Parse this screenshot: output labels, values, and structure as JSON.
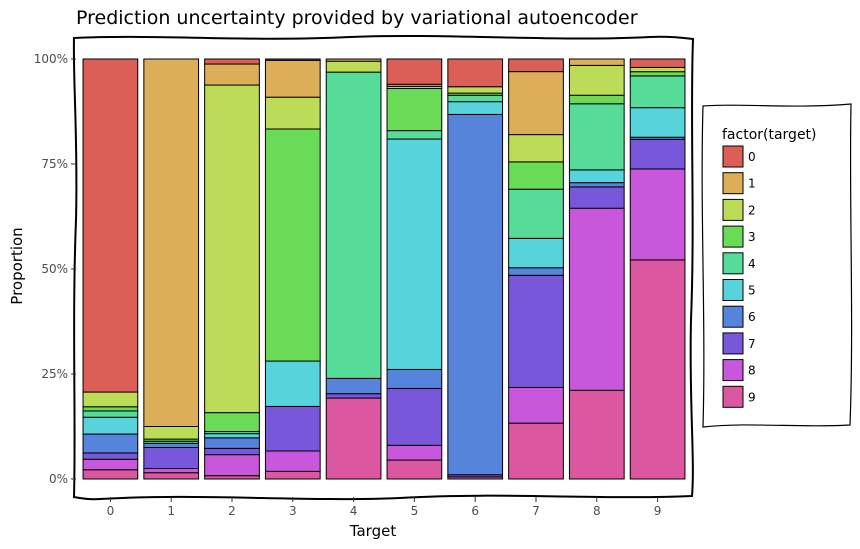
{
  "chart_data": {
    "type": "bar",
    "stacked": "proportion",
    "title": "Prediction uncertainty provided by variational autoencoder",
    "xlabel": "Target",
    "ylabel": "Proportion",
    "categories": [
      "0",
      "1",
      "2",
      "3",
      "4",
      "5",
      "6",
      "7",
      "8",
      "9"
    ],
    "yticks": [
      "0%",
      "25%",
      "50%",
      "75%",
      "100%"
    ],
    "ylim": [
      0,
      1
    ],
    "grid": false,
    "legend": {
      "title": "factor(target)",
      "position": "right"
    },
    "series": [
      {
        "name": "0",
        "color": "#db5f57",
        "values": [
          0.793,
          0.0,
          0.012,
          0.003,
          0.0,
          0.06,
          0.065,
          0.03,
          0.0,
          0.02
        ]
      },
      {
        "name": "1",
        "color": "#dbae57",
        "values": [
          0.0,
          0.875,
          0.05,
          0.087,
          0.005,
          0.005,
          0.0,
          0.15,
          0.015,
          0.0
        ]
      },
      {
        "name": "2",
        "color": "#bcdb57",
        "values": [
          0.035,
          0.03,
          0.78,
          0.075,
          0.025,
          0.005,
          0.015,
          0.065,
          0.07,
          0.01
        ]
      },
      {
        "name": "3",
        "color": "#6adb57",
        "values": [
          0.01,
          0.005,
          0.045,
          0.547,
          0.0,
          0.1,
          0.005,
          0.065,
          0.02,
          0.01
        ]
      },
      {
        "name": "4",
        "color": "#57db98",
        "values": [
          0.015,
          0.005,
          0.005,
          0.0,
          0.7,
          0.02,
          0.015,
          0.117,
          0.155,
          0.075
        ]
      },
      {
        "name": "5",
        "color": "#57d3db",
        "values": [
          0.04,
          0.0,
          0.01,
          0.107,
          0.0,
          0.547,
          0.03,
          0.07,
          0.03,
          0.07
        ]
      },
      {
        "name": "6",
        "color": "#5784db",
        "values": [
          0.045,
          0.01,
          0.025,
          0.0,
          0.035,
          0.045,
          0.845,
          0.018,
          0.01,
          0.005
        ]
      },
      {
        "name": "7",
        "color": "#7957db",
        "values": [
          0.015,
          0.05,
          0.015,
          0.105,
          0.01,
          0.135,
          0.005,
          0.267,
          0.05,
          0.07
        ]
      },
      {
        "name": "8",
        "color": "#c957db",
        "values": [
          0.025,
          0.01,
          0.05,
          0.048,
          0.0,
          0.035,
          0.0,
          0.085,
          0.427,
          0.215
        ]
      },
      {
        "name": "9",
        "color": "#db57a0",
        "values": [
          0.022,
          0.015,
          0.008,
          0.018,
          0.185,
          0.045,
          0.005,
          0.133,
          0.208,
          0.518
        ]
      }
    ]
  }
}
